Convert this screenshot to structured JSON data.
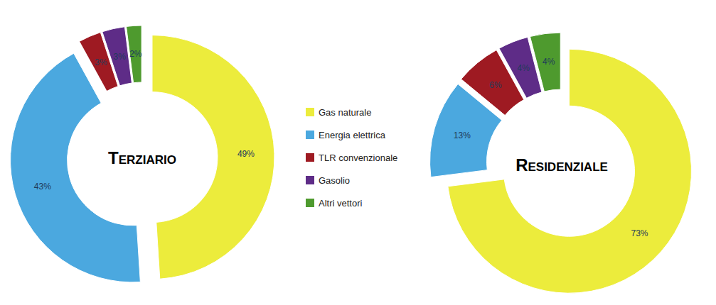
{
  "chart_data": [
    {
      "type": "pie",
      "title": "Terziario",
      "categories": [
        "Gas naturale",
        "Energia elettrica",
        "TLR convenzionale",
        "Gasolio",
        "Altri vettori"
      ],
      "values": [
        49,
        43,
        3,
        3,
        2
      ],
      "value_labels": [
        "49%",
        "43%",
        "3%",
        "3%",
        "2%"
      ],
      "colors": [
        "#ecec3c",
        "#4ba8df",
        "#9e1a22",
        "#5e2c87",
        "#4e9a2e"
      ],
      "data_labels": true,
      "legend": "right"
    },
    {
      "type": "pie",
      "title": "Residenziale",
      "categories": [
        "Gas naturale",
        "Energia elettrica",
        "TLR convenzionale",
        "Gasolio",
        "Altri vettori"
      ],
      "values": [
        73,
        13,
        6,
        4,
        4
      ],
      "value_labels": [
        "73%",
        "13%",
        "6%",
        "4%",
        "4%"
      ],
      "colors": [
        "#ecec3c",
        "#4ba8df",
        "#9e1a22",
        "#5e2c87",
        "#4e9a2e"
      ],
      "data_labels": true
    }
  ]
}
